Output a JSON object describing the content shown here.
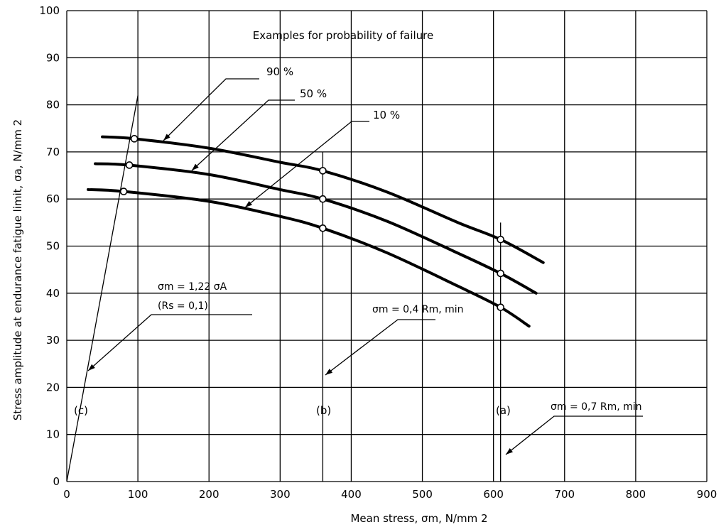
{
  "chart_data": {
    "type": "line",
    "title": "Examples for probability of failure",
    "xlabel": "Mean stress, σm, N/mm 2",
    "ylabel": "Stress amplitude at endurance fatigue limit, σa, N/mm 2",
    "xlim": [
      0,
      900
    ],
    "ylim": [
      0,
      100
    ],
    "xticks": [
      "0",
      "100",
      "200",
      "300",
      "400",
      "500",
      "600",
      "700",
      "800",
      "900"
    ],
    "yticks": [
      "0",
      "10",
      "20",
      "30",
      "40",
      "50",
      "60",
      "70",
      "80",
      "90",
      "100"
    ],
    "grid": true,
    "series": [
      {
        "name": "90 %",
        "x": [
          50,
          95,
          200,
          300,
          360,
          450,
          550,
          610,
          670
        ],
        "y": [
          73.2,
          72.8,
          70.8,
          67.8,
          66.0,
          61.5,
          55.0,
          51.4,
          46.5
        ],
        "markers_at_x": [
          95,
          360,
          610
        ]
      },
      {
        "name": "50 %",
        "x": [
          40,
          88,
          200,
          300,
          360,
          450,
          550,
          610,
          660
        ],
        "y": [
          67.5,
          67.2,
          65.2,
          62.0,
          60.0,
          55.3,
          48.5,
          44.2,
          40.0
        ],
        "markers_at_x": [
          88,
          360,
          610
        ]
      },
      {
        "name": "10 %",
        "x": [
          30,
          80,
          200,
          300,
          360,
          450,
          550,
          610,
          650
        ],
        "y": [
          62.0,
          61.6,
          59.5,
          56.3,
          53.8,
          48.6,
          41.5,
          37.0,
          33.0
        ],
        "markers_at_x": [
          80,
          360,
          610
        ]
      }
    ],
    "reference_lines": [
      {
        "label": "(c)",
        "x": [
          0,
          100
        ],
        "y": [
          0,
          82
        ]
      },
      {
        "label": "(b)",
        "x": [
          360,
          360
        ],
        "y": [
          0,
          70
        ]
      },
      {
        "label": "(a)",
        "x": [
          610,
          610
        ],
        "y": [
          0,
          55
        ]
      }
    ],
    "annotations": {
      "line_c": {
        "line1": "σm = 1,22 σA",
        "line2": "(Rs = 0,1)"
      },
      "line_b": "σm = 0,4 Rm, min",
      "line_a": "σm = 0,7 Rm, min"
    }
  }
}
